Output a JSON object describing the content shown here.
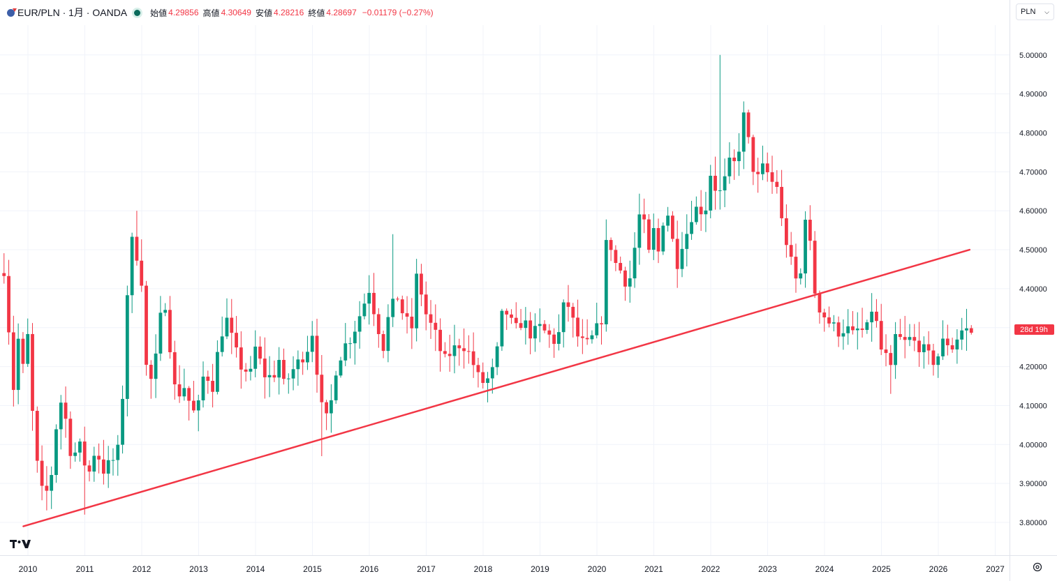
{
  "header": {
    "symbol": "EUR/PLN · 1月 · OANDA",
    "open_label": "始値",
    "open": "4.29856",
    "high_label": "高値",
    "high": "4.30649",
    "low_label": "安値",
    "low": "4.28216",
    "close_label": "終値",
    "close": "4.28697",
    "change": "−0.01179 (−0.27%)"
  },
  "currency_button": {
    "label": "PLN"
  },
  "countdown": "28d 19h",
  "colors": {
    "up": "#089981",
    "down": "#f23645",
    "trendline": "#f23645",
    "grid": "#f0f3fa"
  },
  "chart_data": {
    "type": "candlestick",
    "interval": "monthly",
    "ylim": [
      3.77,
      5.05
    ],
    "y_ticks": [
      3.8,
      3.9,
      4.0,
      4.1,
      4.2,
      4.3,
      4.4,
      4.5,
      4.6,
      4.7,
      4.8,
      4.9,
      5.0
    ],
    "y_tick_labels": [
      "3.80000",
      "3.90000",
      "4.00000",
      "4.10000",
      "4.20000",
      "4.30000",
      "4.40000",
      "4.50000",
      "4.60000",
      "4.70000",
      "4.80000",
      "4.90000",
      "5.00000"
    ],
    "x_ticks": [
      2010,
      2011,
      2012,
      2013,
      2014,
      2015,
      2016,
      2017,
      2018,
      2019,
      2020,
      2021,
      2022,
      2023,
      2024,
      2025,
      2026,
      2027
    ],
    "x_tick_labels": [
      "2010",
      "2011",
      "2012",
      "2013",
      "2014",
      "2015",
      "2016",
      "2017",
      "2018",
      "2019",
      "2020",
      "2021",
      "2022",
      "2023",
      "2024",
      "2025",
      "2026",
      "2027"
    ],
    "xlim": [
      2009.55,
      2027.7
    ],
    "last_price": 4.28697,
    "trendline": {
      "from": {
        "x": 2009.92,
        "y": 3.79
      },
      "to": {
        "x": 2026.55,
        "y": 4.5
      }
    },
    "anchors": [
      [
        2009.58,
        4.45
      ],
      [
        2009.75,
        4.14
      ],
      [
        2009.83,
        4.27
      ],
      [
        2009.92,
        4.19
      ],
      [
        2010.0,
        4.28
      ],
      [
        2010.12,
        3.98
      ],
      [
        2010.2,
        3.92
      ],
      [
        2010.28,
        3.85
      ],
      [
        2010.42,
        3.93
      ],
      [
        2010.5,
        4.05
      ],
      [
        2010.62,
        4.14
      ],
      [
        2010.7,
        4.0
      ],
      [
        2010.8,
        3.97
      ],
      [
        2010.9,
        4.0
      ],
      [
        2011.0,
        3.95
      ],
      [
        2011.08,
        3.93
      ],
      [
        2011.2,
        4.0
      ],
      [
        2011.3,
        3.93
      ],
      [
        2011.5,
        3.96
      ],
      [
        2011.6,
        3.99
      ],
      [
        2011.67,
        4.14
      ],
      [
        2011.75,
        4.4
      ],
      [
        2011.85,
        4.55
      ],
      [
        2011.92,
        4.48
      ],
      [
        2012.0,
        4.42
      ],
      [
        2012.08,
        4.2
      ],
      [
        2012.2,
        4.15
      ],
      [
        2012.3,
        4.3
      ],
      [
        2012.4,
        4.38
      ],
      [
        2012.5,
        4.25
      ],
      [
        2012.6,
        4.12
      ],
      [
        2012.75,
        4.15
      ],
      [
        2012.9,
        4.08
      ],
      [
        2013.0,
        4.1
      ],
      [
        2013.1,
        4.19
      ],
      [
        2013.25,
        4.15
      ],
      [
        2013.38,
        4.28
      ],
      [
        2013.5,
        4.32
      ],
      [
        2013.62,
        4.25
      ],
      [
        2013.75,
        4.2
      ],
      [
        2013.92,
        4.18
      ],
      [
        2014.0,
        4.25
      ],
      [
        2014.15,
        4.18
      ],
      [
        2014.3,
        4.17
      ],
      [
        2014.42,
        4.22
      ],
      [
        2014.5,
        4.15
      ],
      [
        2014.65,
        4.19
      ],
      [
        2014.8,
        4.22
      ],
      [
        2014.92,
        4.25
      ],
      [
        2015.0,
        4.29
      ],
      [
        2015.1,
        4.17
      ],
      [
        2015.2,
        4.05
      ],
      [
        2015.3,
        4.08
      ],
      [
        2015.42,
        4.2
      ],
      [
        2015.55,
        4.25
      ],
      [
        2015.7,
        4.28
      ],
      [
        2015.85,
        4.34
      ],
      [
        2016.0,
        4.4
      ],
      [
        2016.12,
        4.32
      ],
      [
        2016.25,
        4.25
      ],
      [
        2016.35,
        4.34
      ],
      [
        2016.5,
        4.38
      ],
      [
        2016.62,
        4.32
      ],
      [
        2016.75,
        4.3
      ],
      [
        2016.85,
        4.46
      ],
      [
        2016.95,
        4.35
      ],
      [
        2017.1,
        4.3
      ],
      [
        2017.2,
        4.27
      ],
      [
        2017.3,
        4.21
      ],
      [
        2017.45,
        4.24
      ],
      [
        2017.6,
        4.26
      ],
      [
        2017.7,
        4.25
      ],
      [
        2017.82,
        4.21
      ],
      [
        2017.92,
        4.17
      ],
      [
        2018.0,
        4.16
      ],
      [
        2018.12,
        4.17
      ],
      [
        2018.22,
        4.21
      ],
      [
        2018.35,
        4.35
      ],
      [
        2018.45,
        4.33
      ],
      [
        2018.55,
        4.29
      ],
      [
        2018.7,
        4.32
      ],
      [
        2018.85,
        4.28
      ],
      [
        2019.0,
        4.3
      ],
      [
        2019.15,
        4.28
      ],
      [
        2019.3,
        4.26
      ],
      [
        2019.45,
        4.38
      ],
      [
        2019.55,
        4.33
      ],
      [
        2019.65,
        4.28
      ],
      [
        2019.8,
        4.25
      ],
      [
        2019.95,
        4.28
      ],
      [
        2020.1,
        4.33
      ],
      [
        2020.18,
        4.56
      ],
      [
        2020.3,
        4.47
      ],
      [
        2020.45,
        4.44
      ],
      [
        2020.55,
        4.4
      ],
      [
        2020.68,
        4.52
      ],
      [
        2020.78,
        4.62
      ],
      [
        2020.9,
        4.48
      ],
      [
        2021.0,
        4.55
      ],
      [
        2021.1,
        4.48
      ],
      [
        2021.2,
        4.63
      ],
      [
        2021.3,
        4.55
      ],
      [
        2021.4,
        4.46
      ],
      [
        2021.5,
        4.52
      ],
      [
        2021.6,
        4.55
      ],
      [
        2021.7,
        4.61
      ],
      [
        2021.8,
        4.6
      ],
      [
        2021.92,
        4.61
      ],
      [
        2022.0,
        4.7
      ],
      [
        2022.08,
        4.66
      ],
      [
        2022.2,
        4.64
      ],
      [
        2022.3,
        4.72
      ],
      [
        2022.45,
        4.72
      ],
      [
        2022.6,
        4.86
      ],
      [
        2022.7,
        4.73
      ],
      [
        2022.82,
        4.68
      ],
      [
        2022.95,
        4.72
      ],
      [
        2023.05,
        4.67
      ],
      [
        2023.15,
        4.68
      ],
      [
        2023.25,
        4.57
      ],
      [
        2023.38,
        4.49
      ],
      [
        2023.48,
        4.42
      ],
      [
        2023.6,
        4.44
      ],
      [
        2023.68,
        4.63
      ],
      [
        2023.78,
        4.45
      ],
      [
        2023.85,
        4.37
      ],
      [
        2023.95,
        4.34
      ],
      [
        2024.1,
        4.31
      ],
      [
        2024.25,
        4.29
      ],
      [
        2024.38,
        4.3
      ],
      [
        2024.5,
        4.28
      ],
      [
        2024.62,
        4.3
      ],
      [
        2024.72,
        4.28
      ],
      [
        2024.85,
        4.36
      ],
      [
        2024.95,
        4.28
      ],
      [
        2025.0,
        4.24
      ],
      [
        2025.1,
        4.22
      ],
      [
        2025.18,
        4.18
      ],
      [
        2025.25,
        4.28
      ],
      [
        2025.4,
        4.26
      ],
      [
        2025.5,
        4.27
      ],
      [
        2025.6,
        4.26
      ],
      [
        2025.7,
        4.25
      ],
      [
        2025.8,
        4.23
      ],
      [
        2025.95,
        4.21
      ],
      [
        2026.1,
        4.27
      ],
      [
        2026.25,
        4.25
      ],
      [
        2026.35,
        4.28
      ],
      [
        2026.45,
        4.3
      ],
      [
        2026.55,
        4.287
      ]
    ],
    "spikes": [
      [
        2022.18,
        5.0
      ],
      [
        2011.92,
        4.6
      ],
      [
        2016.4,
        4.54
      ],
      [
        2015.2,
        3.97
      ],
      [
        2011.0,
        3.82
      ],
      [
        2025.15,
        4.13
      ]
    ]
  }
}
